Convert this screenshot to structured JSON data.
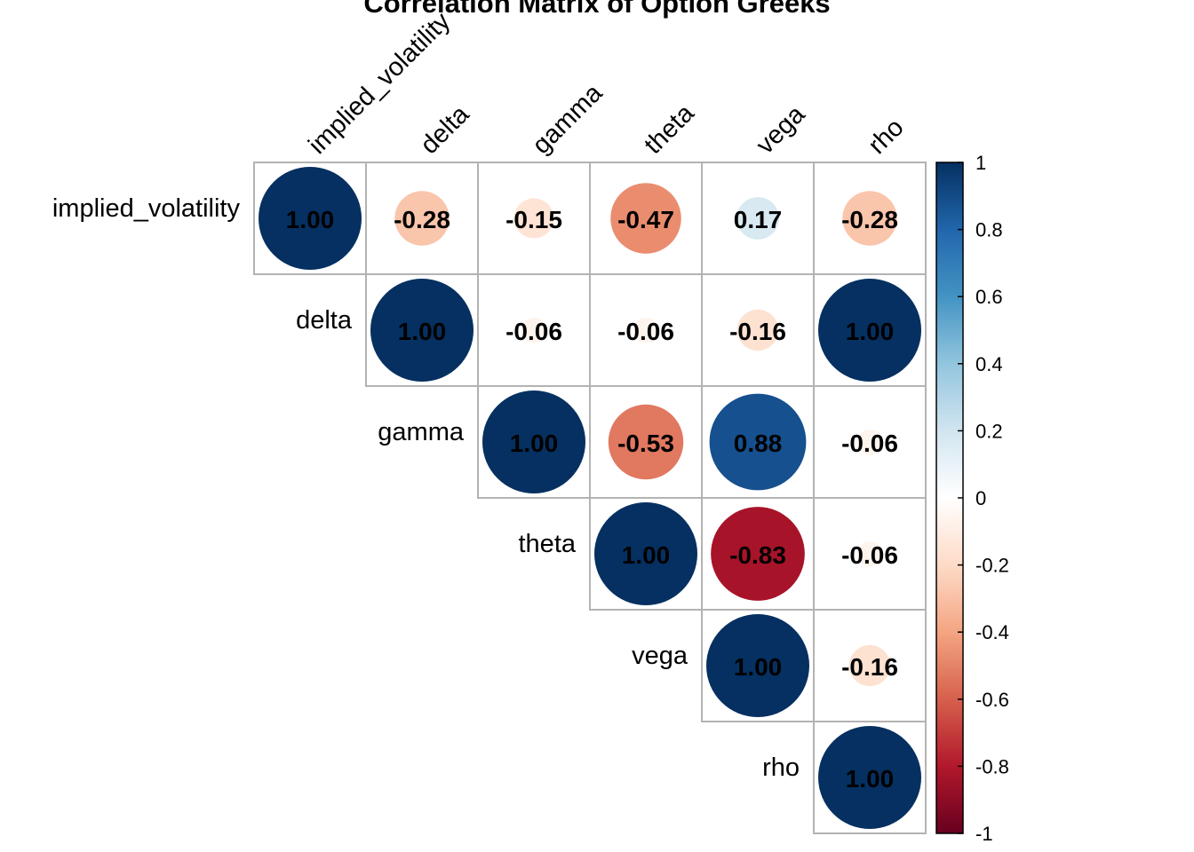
{
  "chart_data": {
    "type": "heatmap",
    "subtype": "correlation-upper-circles",
    "title": "Correlation Matrix of Option Greeks",
    "variables": [
      "implied_volatility",
      "delta",
      "gamma",
      "theta",
      "vega",
      "rho"
    ],
    "matrix": [
      [
        1.0,
        -0.28,
        -0.15,
        -0.47,
        0.17,
        -0.28
      ],
      [
        -0.28,
        1.0,
        -0.06,
        -0.06,
        -0.16,
        1.0
      ],
      [
        -0.15,
        -0.06,
        1.0,
        -0.53,
        0.88,
        -0.06
      ],
      [
        -0.47,
        -0.06,
        -0.53,
        1.0,
        -0.83,
        -0.06
      ],
      [
        0.17,
        -0.16,
        0.88,
        -0.83,
        1.0,
        -0.16
      ],
      [
        -0.28,
        1.0,
        -0.06,
        -0.06,
        -0.16,
        1.0
      ]
    ],
    "value_labels_decimals": 2,
    "colorbar": {
      "range": [
        -1,
        1
      ],
      "ticks": [
        1,
        0.8,
        0.6,
        0.4,
        0.2,
        0,
        -0.2,
        -0.4,
        -0.6,
        -0.8,
        -1
      ],
      "colors": [
        "#67001F",
        "#B2182B",
        "#D6604D",
        "#F4A582",
        "#FDDBC7",
        "#FFFFFF",
        "#D1E5F0",
        "#92C5DE",
        "#4393C3",
        "#2166AC",
        "#053061"
      ]
    },
    "grid": true,
    "legend": "right"
  }
}
